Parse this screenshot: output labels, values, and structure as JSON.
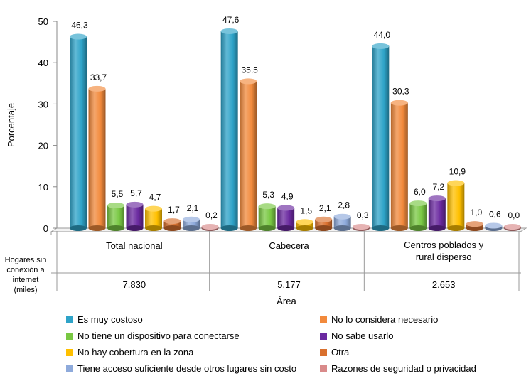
{
  "chart_data": {
    "type": "bar",
    "ylabel": "Porcentaje",
    "xlabel": "Área",
    "ylim": [
      0,
      50
    ],
    "yticks": [
      0,
      10,
      20,
      30,
      40,
      50
    ],
    "categories": [
      "Total nacional",
      "Cabecera",
      "Centros poblados y rural disperso"
    ],
    "category_labels": [
      [
        "Total nacional"
      ],
      [
        "Cabecera"
      ],
      [
        "Centros poblados y",
        "rural disperso"
      ]
    ],
    "households_label": [
      "Hogares sin",
      "conexión a",
      "internet",
      "(miles)"
    ],
    "households_values": [
      "7.830",
      "5.177",
      "2.653"
    ],
    "series": [
      {
        "name": "Es muy costoso",
        "color": "#2ea3c8",
        "values": [
          46.3,
          47.6,
          44.0
        ],
        "labels": [
          "46,3",
          "47,6",
          "44,0"
        ]
      },
      {
        "name": "No lo considera necesario",
        "color": "#f28a3c",
        "values": [
          33.7,
          35.5,
          30.3
        ],
        "labels": [
          "33,7",
          "35,5",
          "30,3"
        ]
      },
      {
        "name": "No tiene un dispositivo para conectarse",
        "color": "#79c843",
        "values": [
          5.5,
          5.3,
          6.0
        ],
        "labels": [
          "5,5",
          "5,3",
          "6,0"
        ]
      },
      {
        "name": "No sabe usarlo",
        "color": "#6b2aa0",
        "values": [
          5.7,
          4.9,
          7.2
        ],
        "labels": [
          "5,7",
          "4,9",
          "7,2"
        ]
      },
      {
        "name": "No hay cobertura en la zona",
        "color": "#ffc000",
        "values": [
          4.7,
          1.5,
          10.9
        ],
        "labels": [
          "4,7",
          "1,5",
          "10,9"
        ]
      },
      {
        "name": "Otra",
        "color": "#d9702e",
        "values": [
          1.7,
          2.1,
          1.0
        ],
        "labels": [
          "1,7",
          "2,1",
          "1,0"
        ]
      },
      {
        "name": "Tiene acceso suficiente desde otros lugares sin costo",
        "color": "#8eaadb",
        "values": [
          2.1,
          2.8,
          0.6
        ],
        "labels": [
          "2,1",
          "2,8",
          "0,6"
        ]
      },
      {
        "name": "Razones de seguridad o privacidad",
        "color": "#d98a8a",
        "values": [
          0.2,
          0.3,
          0.0
        ],
        "labels": [
          "0,2",
          "0,3",
          "0,0"
        ]
      }
    ],
    "legend_position": "bottom",
    "grid": false
  }
}
